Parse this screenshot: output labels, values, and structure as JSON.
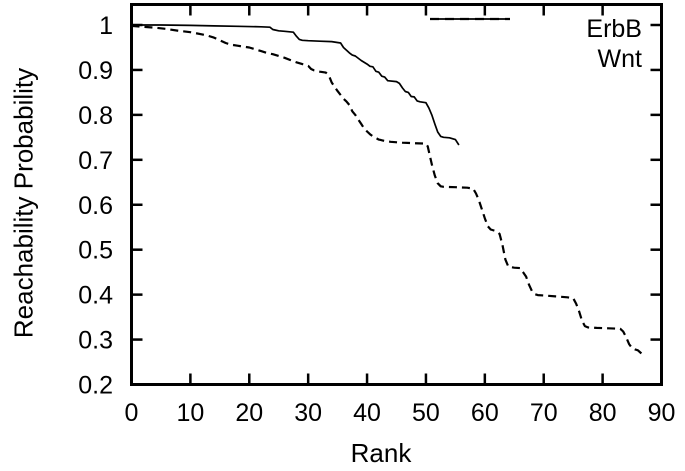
{
  "figure": {
    "background": "#ffffff",
    "foreground": "#000000"
  },
  "chart_data": {
    "type": "line",
    "title": "",
    "xlabel": "Rank",
    "ylabel": "Reachability Probability",
    "xlim": [
      0,
      90
    ],
    "ylim": [
      0.2,
      1.0
    ],
    "grid": false,
    "xticks": {
      "values": [
        0,
        10,
        20,
        30,
        40,
        50,
        60,
        70,
        80,
        90
      ],
      "labels": [
        "0",
        "10",
        "20",
        "30",
        "40",
        "50",
        "60",
        "70",
        "80",
        "90"
      ]
    },
    "yticks": {
      "values": [
        1.0,
        0.9,
        0.8,
        0.7,
        0.6,
        0.5,
        0.4,
        0.3,
        0.2
      ],
      "labels": [
        "1",
        "0.9",
        "0.8",
        "0.7",
        "0.6",
        "0.5",
        "0.4",
        "0.3",
        "0.2"
      ]
    },
    "legend": {
      "position": "top-right-inside",
      "entries": [
        {
          "label": "ErbB",
          "line_style": "solid"
        },
        {
          "label": "Wnt",
          "line_style": "dashed"
        }
      ]
    },
    "series": [
      {
        "name": "ErbB",
        "line_style": "solid",
        "color": "#000000",
        "points": [
          [
            0,
            1.0
          ],
          [
            5,
            1.0
          ],
          [
            10,
            0.999
          ],
          [
            14,
            0.998
          ],
          [
            18,
            0.997
          ],
          [
            22,
            0.996
          ],
          [
            23.5,
            0.995
          ],
          [
            24,
            0.99
          ],
          [
            25,
            0.987
          ],
          [
            26,
            0.986
          ],
          [
            27.5,
            0.984
          ],
          [
            28,
            0.975
          ],
          [
            28.5,
            0.968
          ],
          [
            29,
            0.966
          ],
          [
            30,
            0.965
          ],
          [
            32,
            0.964
          ],
          [
            34,
            0.963
          ],
          [
            35.5,
            0.96
          ],
          [
            36,
            0.95
          ],
          [
            37,
            0.938
          ],
          [
            37.5,
            0.933
          ],
          [
            38,
            0.931
          ],
          [
            39,
            0.921
          ],
          [
            40,
            0.913
          ],
          [
            40.5,
            0.908
          ],
          [
            41,
            0.907
          ],
          [
            41.5,
            0.897
          ],
          [
            42,
            0.895
          ],
          [
            42.5,
            0.886
          ],
          [
            43,
            0.884
          ],
          [
            43.5,
            0.876
          ],
          [
            45,
            0.874
          ],
          [
            45.5,
            0.87
          ],
          [
            46,
            0.86
          ],
          [
            46.5,
            0.852
          ],
          [
            47,
            0.85
          ],
          [
            47.5,
            0.841
          ],
          [
            48,
            0.84
          ],
          [
            48.5,
            0.831
          ],
          [
            49,
            0.829
          ],
          [
            50,
            0.827
          ],
          [
            50.5,
            0.815
          ],
          [
            51,
            0.8
          ],
          [
            51.5,
            0.78
          ],
          [
            52,
            0.762
          ],
          [
            52.5,
            0.752
          ],
          [
            53,
            0.75
          ],
          [
            54,
            0.749
          ],
          [
            55,
            0.745
          ],
          [
            55.6,
            0.733
          ]
        ]
      },
      {
        "name": "Wnt",
        "line_style": "dashed",
        "color": "#000000",
        "points": [
          [
            0,
            0.998
          ],
          [
            2,
            0.996
          ],
          [
            4,
            0.994
          ],
          [
            6,
            0.991
          ],
          [
            8,
            0.987
          ],
          [
            10,
            0.984
          ],
          [
            12,
            0.979
          ],
          [
            13,
            0.976
          ],
          [
            14,
            0.972
          ],
          [
            15,
            0.966
          ],
          [
            16,
            0.96
          ],
          [
            17,
            0.956
          ],
          [
            18,
            0.954
          ],
          [
            19,
            0.952
          ],
          [
            20,
            0.95
          ],
          [
            21,
            0.946
          ],
          [
            22,
            0.942
          ],
          [
            23,
            0.938
          ],
          [
            24,
            0.935
          ],
          [
            25,
            0.931
          ],
          [
            26,
            0.927
          ],
          [
            27,
            0.922
          ],
          [
            28,
            0.917
          ],
          [
            29,
            0.913
          ],
          [
            30,
            0.909
          ],
          [
            30.5,
            0.902
          ],
          [
            31,
            0.899
          ],
          [
            32,
            0.896
          ],
          [
            33,
            0.894
          ],
          [
            33.5,
            0.888
          ],
          [
            34,
            0.872
          ],
          [
            35,
            0.853
          ],
          [
            36,
            0.836
          ],
          [
            36.5,
            0.83
          ],
          [
            37,
            0.822
          ],
          [
            37.5,
            0.808
          ],
          [
            38,
            0.8
          ],
          [
            38.5,
            0.79
          ],
          [
            39,
            0.78
          ],
          [
            39.5,
            0.77
          ],
          [
            40,
            0.763
          ],
          [
            40.5,
            0.757
          ],
          [
            41,
            0.752
          ],
          [
            42,
            0.745
          ],
          [
            43,
            0.742
          ],
          [
            44,
            0.74
          ],
          [
            46,
            0.738
          ],
          [
            48,
            0.737
          ],
          [
            50,
            0.736
          ],
          [
            50.3,
            0.73
          ],
          [
            51,
            0.69
          ],
          [
            51.5,
            0.665
          ],
          [
            52,
            0.648
          ],
          [
            52.5,
            0.641
          ],
          [
            53,
            0.64
          ],
          [
            55,
            0.639
          ],
          [
            57,
            0.638
          ],
          [
            58,
            0.636
          ],
          [
            58.5,
            0.625
          ],
          [
            59,
            0.61
          ],
          [
            60,
            0.57
          ],
          [
            60.5,
            0.552
          ],
          [
            61,
            0.545
          ],
          [
            62,
            0.541
          ],
          [
            62.5,
            0.535
          ],
          [
            63,
            0.51
          ],
          [
            63.5,
            0.478
          ],
          [
            64,
            0.462
          ],
          [
            65,
            0.46
          ],
          [
            66,
            0.459
          ],
          [
            66.5,
            0.45
          ],
          [
            67,
            0.44
          ],
          [
            67.5,
            0.422
          ],
          [
            68,
            0.408
          ],
          [
            68.5,
            0.401
          ],
          [
            69,
            0.399
          ],
          [
            70,
            0.398
          ],
          [
            72,
            0.396
          ],
          [
            74,
            0.394
          ],
          [
            75,
            0.392
          ],
          [
            75.5,
            0.38
          ],
          [
            76,
            0.363
          ],
          [
            76.5,
            0.342
          ],
          [
            77,
            0.33
          ],
          [
            77.5,
            0.327
          ],
          [
            79,
            0.326
          ],
          [
            81,
            0.325
          ],
          [
            83,
            0.324
          ],
          [
            83.5,
            0.318
          ],
          [
            84,
            0.305
          ],
          [
            84.5,
            0.29
          ],
          [
            85,
            0.281
          ],
          [
            85.5,
            0.278
          ],
          [
            86,
            0.276
          ],
          [
            86.5,
            0.27
          ],
          [
            87,
            0.264
          ]
        ]
      }
    ]
  }
}
